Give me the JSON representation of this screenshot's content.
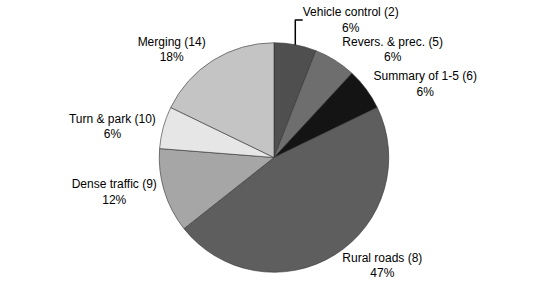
{
  "chart_data": {
    "type": "pie",
    "categories": [
      "Vehicle control (2)",
      "Revers. & prec. (5)",
      "Summary of 1-5 (6)",
      "Rural roads (8)",
      "Dense traffic (9)",
      "Turn & park (10)",
      "Merging (14)"
    ],
    "values": [
      6,
      6,
      6,
      47,
      12,
      6,
      18
    ],
    "value_labels": [
      "6%",
      "6%",
      "6%",
      "47%",
      "12%",
      "6%",
      "18%"
    ],
    "colors": [
      "#4f4f4f",
      "#6e6e6e",
      "#141414",
      "#5e5e5e",
      "#a6a6a6",
      "#e6e6e6",
      "#c4c4c4"
    ],
    "data_labels": true
  }
}
